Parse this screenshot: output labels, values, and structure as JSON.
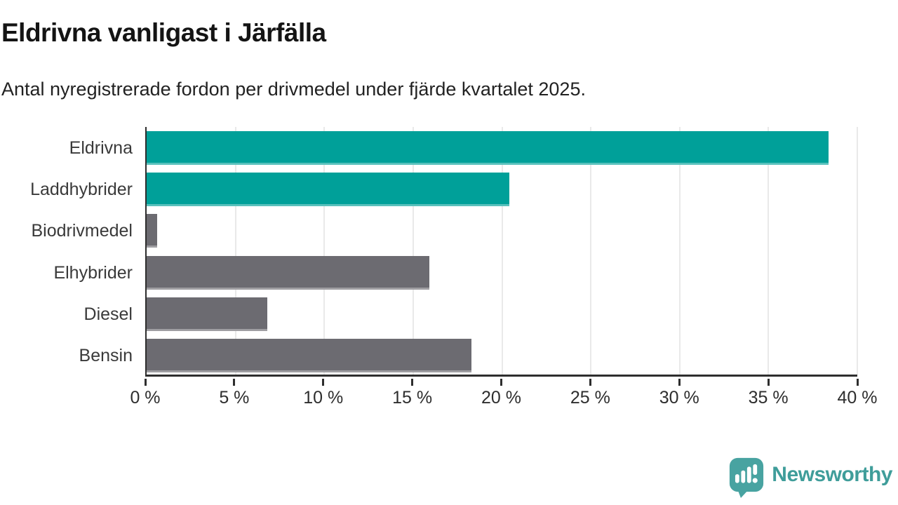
{
  "header": {
    "title": "Eldrivna vanligast i Järfälla",
    "subtitle": "Antal nyregistrerade fordon per drivmedel under fjärde kvartalet 2025."
  },
  "chart_data": {
    "type": "bar",
    "orientation": "horizontal",
    "title": "Eldrivna vanligast i Järfälla",
    "subtitle": "Antal nyregistrerade fordon per drivmedel under fjärde kvartalet 2025.",
    "categories": [
      "Eldrivna",
      "Laddhybrider",
      "Biodrivmedel",
      "Elhybrider",
      "Diesel",
      "Bensin"
    ],
    "values": [
      38.4,
      20.4,
      0.6,
      15.9,
      6.8,
      18.3
    ],
    "unit": "%",
    "bar_colors": [
      "#00a099",
      "#00a099",
      "#6c6b71",
      "#6c6b71",
      "#6c6b71",
      "#6c6b71"
    ],
    "highlight_color": "#00a099",
    "default_color": "#6c6b71",
    "xlabel": "",
    "ylabel": "",
    "xlim": [
      0,
      40
    ],
    "x_ticks": [
      0,
      5,
      10,
      15,
      20,
      25,
      30,
      35,
      40
    ],
    "x_tick_labels": [
      "0 %",
      "5 %",
      "10 %",
      "15 %",
      "20 %",
      "25 %",
      "30 %",
      "35 %",
      "40 %"
    ],
    "grid": "vertical-gridlines-on",
    "legend": "none",
    "axis_color": "#2e2e2e",
    "gridline_color": "#e9e9e9"
  },
  "branding": {
    "logo_text": "Newsworthy",
    "logo_color": "#3f9d9a",
    "logo_icon": "speech-bubble-bar-chart-icon",
    "logo_icon_color": "#48a3a1"
  }
}
